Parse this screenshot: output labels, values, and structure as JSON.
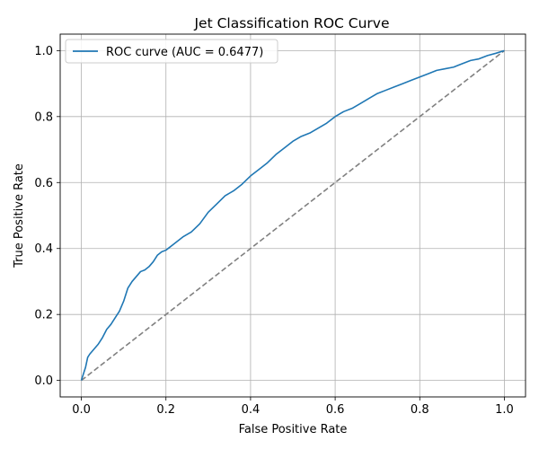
{
  "chart_data": {
    "type": "line",
    "title": "Jet Classification ROC Curve",
    "xlabel": "False Positive Rate",
    "ylabel": "True Positive Rate",
    "xlim": [
      -0.05,
      1.05
    ],
    "ylim": [
      -0.05,
      1.05
    ],
    "xticks": [
      0.0,
      0.2,
      0.4,
      0.6,
      0.8,
      1.0
    ],
    "xtick_labels": [
      "0.0",
      "0.2",
      "0.4",
      "0.6",
      "0.8",
      "1.0"
    ],
    "yticks": [
      0.0,
      0.2,
      0.4,
      0.6,
      0.8,
      1.0
    ],
    "ytick_labels": [
      "0.0",
      "0.2",
      "0.4",
      "0.6",
      "0.8",
      "1.0"
    ],
    "grid": true,
    "legend_position": "upper left",
    "series": [
      {
        "name": "ROC curve (AUC = 0.6477)",
        "color": "#1f77b4",
        "style": "solid",
        "x": [
          0.0,
          0.005,
          0.01,
          0.015,
          0.02,
          0.03,
          0.04,
          0.05,
          0.06,
          0.07,
          0.08,
          0.09,
          0.1,
          0.11,
          0.12,
          0.13,
          0.14,
          0.15,
          0.16,
          0.17,
          0.18,
          0.19,
          0.2,
          0.22,
          0.24,
          0.26,
          0.28,
          0.3,
          0.32,
          0.34,
          0.36,
          0.38,
          0.4,
          0.42,
          0.44,
          0.46,
          0.48,
          0.5,
          0.52,
          0.54,
          0.56,
          0.58,
          0.6,
          0.62,
          0.64,
          0.66,
          0.68,
          0.7,
          0.72,
          0.74,
          0.76,
          0.78,
          0.8,
          0.82,
          0.84,
          0.86,
          0.88,
          0.9,
          0.92,
          0.94,
          0.96,
          0.98,
          1.0
        ],
        "y": [
          0.0,
          0.02,
          0.04,
          0.07,
          0.08,
          0.095,
          0.11,
          0.13,
          0.155,
          0.17,
          0.19,
          0.21,
          0.24,
          0.28,
          0.3,
          0.315,
          0.33,
          0.335,
          0.345,
          0.36,
          0.38,
          0.39,
          0.395,
          0.415,
          0.435,
          0.45,
          0.475,
          0.51,
          0.535,
          0.56,
          0.575,
          0.595,
          0.62,
          0.64,
          0.66,
          0.685,
          0.705,
          0.725,
          0.74,
          0.75,
          0.765,
          0.78,
          0.8,
          0.815,
          0.825,
          0.84,
          0.855,
          0.87,
          0.88,
          0.89,
          0.9,
          0.91,
          0.92,
          0.93,
          0.94,
          0.945,
          0.95,
          0.96,
          0.97,
          0.975,
          0.985,
          0.992,
          1.0
        ]
      },
      {
        "color": "#808080",
        "style": "dashed",
        "x": [
          0.0,
          1.0
        ],
        "y": [
          0.0,
          1.0
        ]
      }
    ]
  }
}
